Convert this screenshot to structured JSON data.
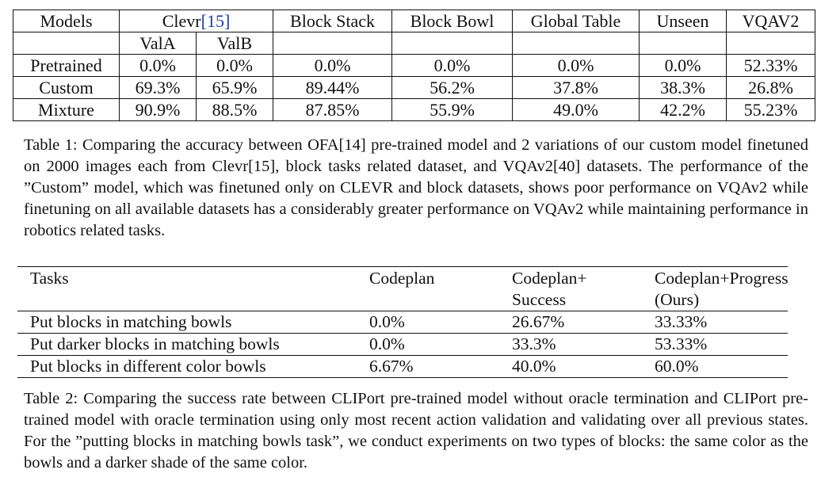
{
  "table1": {
    "header_row1": {
      "models": "Models",
      "clevr": "Clevr",
      "clevr_cite": "[15]",
      "block_stack": "Block Stack",
      "block_bowl": "Block Bowl",
      "global_table": "Global Table",
      "unseen": "Unseen",
      "vqav2": "VQAV2"
    },
    "header_row2": {
      "vala": "ValA",
      "valb": "ValB"
    },
    "rows": [
      {
        "model": "Pretrained",
        "vala": "0.0%",
        "valb": "0.0%",
        "block_stack": "0.0%",
        "block_bowl": "0.0%",
        "global_table": "0.0%",
        "unseen": "0.0%",
        "vqav2": "52.33%"
      },
      {
        "model": "Custom",
        "vala": "69.3%",
        "valb": "65.9%",
        "block_stack": "89.44%",
        "block_bowl": "56.2%",
        "global_table": "37.8%",
        "unseen": "38.3%",
        "vqav2": "26.8%"
      },
      {
        "model": "Mixture",
        "vala": "90.9%",
        "valb": "88.5%",
        "block_stack": "87.85%",
        "block_bowl": "55.9%",
        "global_table": "49.0%",
        "unseen": "42.2%",
        "vqav2": "55.23%"
      }
    ]
  },
  "caption1": "Table 1: Comparing the accuracy between OFA[14] pre-trained model and 2 variations of our custom model finetuned on 2000 images each from Clevr[15], block tasks related dataset, and VQAv2[40] datasets. The performance of the ”Custom” model, which was finetuned only on CLEVR and block datasets, shows poor performance on VQAv2 while finetuning on all available datasets has a considerably greater performance on VQAv2 while maintaining performance in robotics related tasks.",
  "table2": {
    "headers": {
      "tasks": "Tasks",
      "codeplan": "Codeplan",
      "codeplan_success_line1": "Codeplan+",
      "codeplan_success_line2": "Success",
      "codeplan_progress_line1": "Codeplan+Progress",
      "codeplan_progress_line2": "(Ours)"
    },
    "rows": [
      {
        "task": "Put blocks in matching bowls",
        "codeplan": "0.0%",
        "success": "26.67%",
        "progress": "33.33%"
      },
      {
        "task": "Put darker blocks in matching bowls",
        "codeplan": "0.0%",
        "success": "33.3%",
        "progress": "53.33%"
      },
      {
        "task": "Put blocks in different color bowls",
        "codeplan": "6.67%",
        "success": "40.0%",
        "progress": "60.0%"
      }
    ]
  },
  "caption2": "Table 2: Comparing the success rate between CLIPort pre-trained model without oracle termination and CLIPort pre-trained model with oracle termination using only most recent action validation and validating over all previous states. For the ”putting blocks in matching bowls task”, we conduct experiments on two types of blocks: the same color as the bowls and a darker shade of the same color."
}
